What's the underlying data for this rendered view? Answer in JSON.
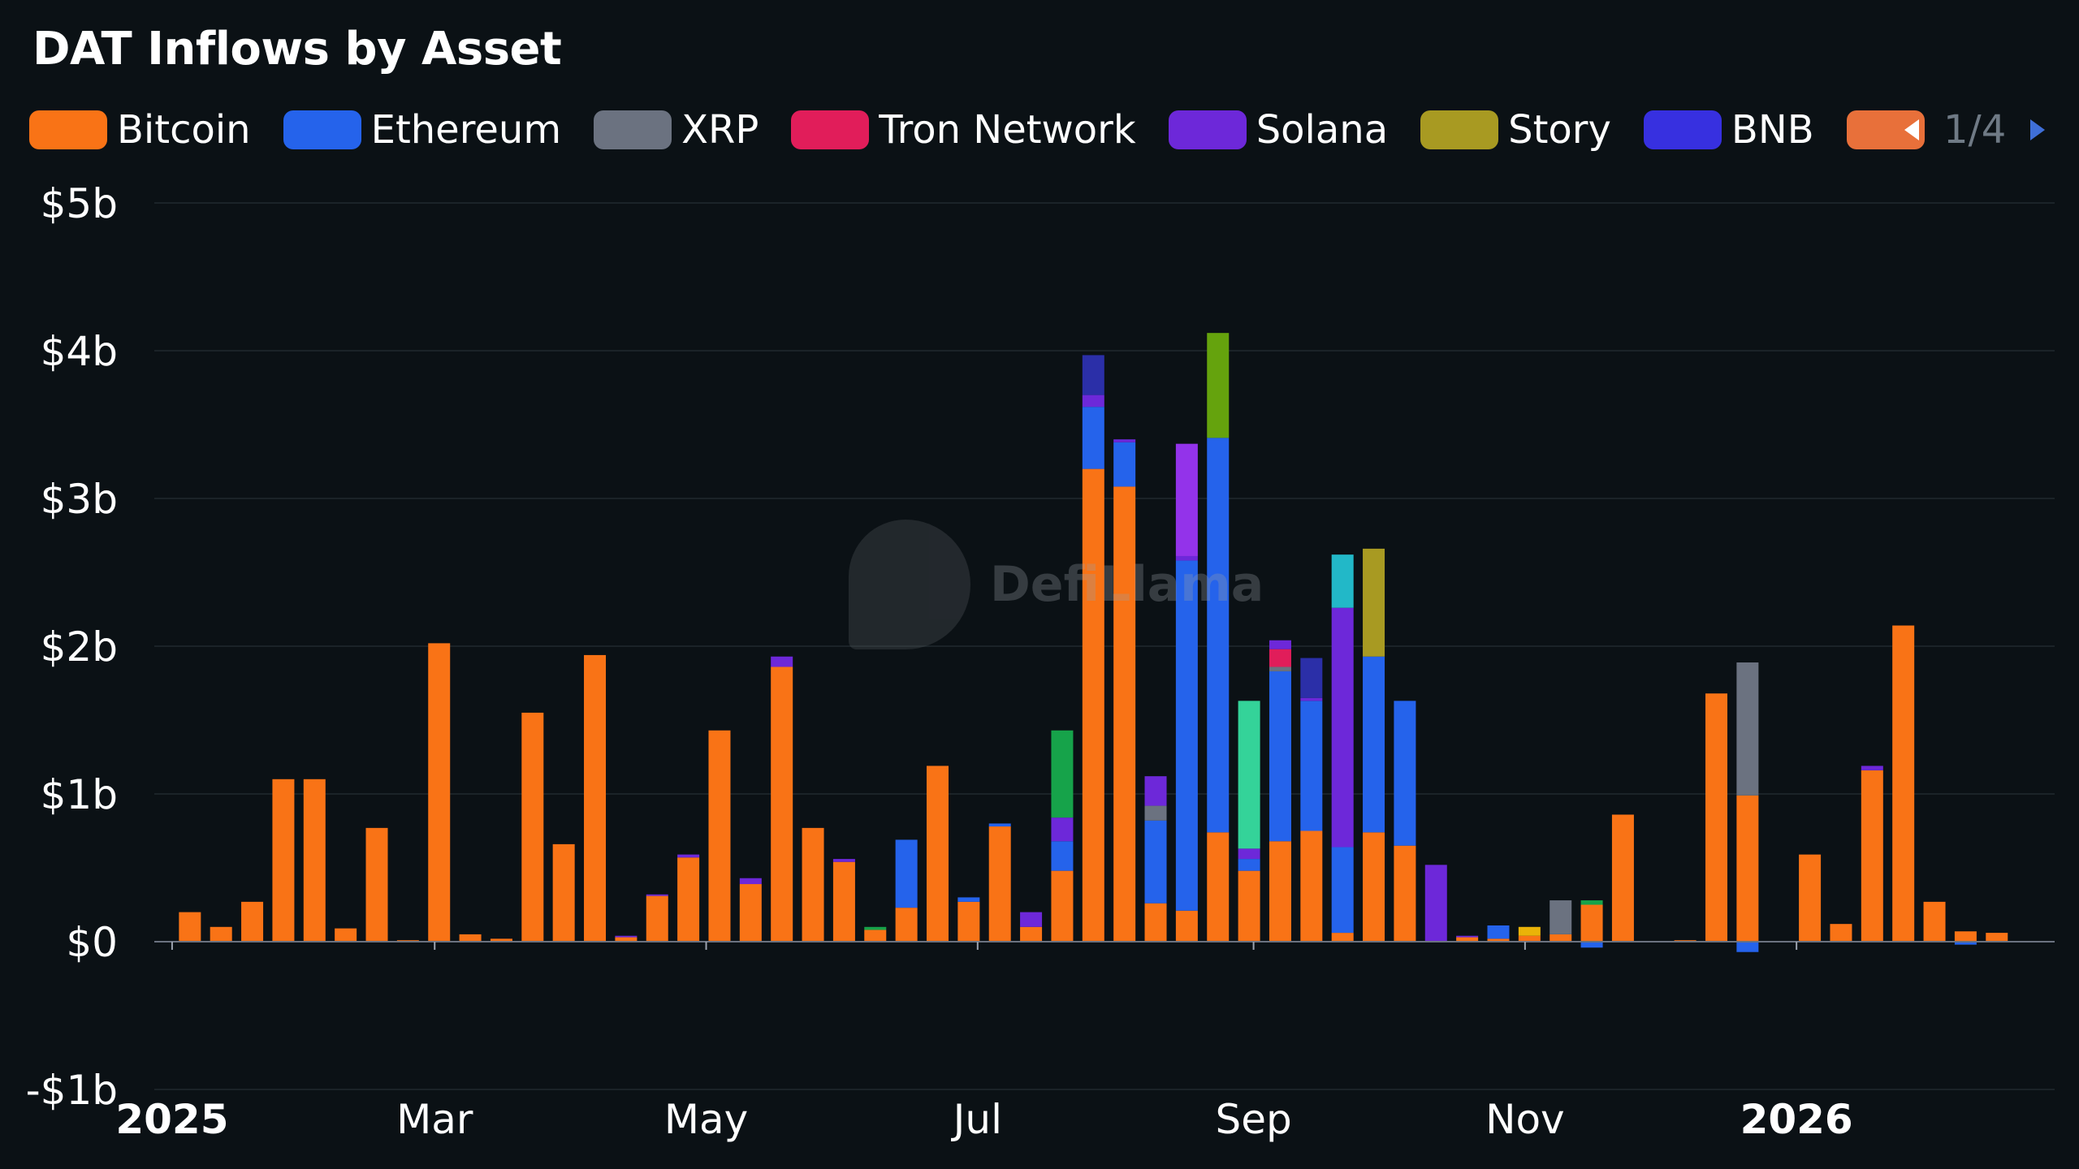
{
  "title": "DAT Inflows by Asset",
  "legend": {
    "items": [
      {
        "label": "Bitcoin",
        "color": "#f97316"
      },
      {
        "label": "Ethereum",
        "color": "#2563eb"
      },
      {
        "label": "XRP",
        "color": "#6b7280"
      },
      {
        "label": "Tron Network",
        "color": "#e11d5a"
      },
      {
        "label": "Solana",
        "color": "#6d28d9"
      },
      {
        "label": "Story",
        "color": "#a89a22"
      },
      {
        "label": "BNB",
        "color": "#3730e0"
      },
      {
        "label": "",
        "color": "#e8703a"
      }
    ],
    "page": "1/4"
  },
  "watermark": "DefiLlama",
  "chart_data": {
    "type": "bar",
    "stacked": true,
    "ylim": [
      -1,
      5
    ],
    "yticks": [
      {
        "value": 5,
        "label": "$5b"
      },
      {
        "value": 4,
        "label": "$4b"
      },
      {
        "value": 3,
        "label": "$3b"
      },
      {
        "value": 2,
        "label": "$2b"
      },
      {
        "value": 1,
        "label": "$1b"
      },
      {
        "value": 0,
        "label": "$0"
      },
      {
        "value": -1,
        "label": "-$1b"
      }
    ],
    "grid": true,
    "legend_position": "top",
    "xrange": [
      "2024-12-28",
      "2026-02-28"
    ],
    "xticks": [
      {
        "date": "2025-01-01",
        "label": "2025",
        "bold": true
      },
      {
        "date": "2025-03-01",
        "label": "Mar",
        "bold": false
      },
      {
        "date": "2025-05-01",
        "label": "May",
        "bold": false
      },
      {
        "date": "2025-07-01",
        "label": "Jul",
        "bold": false
      },
      {
        "date": "2025-09-01",
        "label": "Sep",
        "bold": false
      },
      {
        "date": "2025-11-01",
        "label": "Nov",
        "bold": false
      },
      {
        "date": "2026-01-01",
        "label": "2026",
        "bold": true
      }
    ],
    "segment_colors": {
      "btc": "#f97316",
      "eth": "#2563eb",
      "xrp": "#6b7280",
      "trx": "#e11d5a",
      "sol": "#6d28d9",
      "story": "#a89a22",
      "bnb": "#3730e0",
      "navy": "#2b2fa8",
      "green": "#16a34a",
      "olive": "#65a30d",
      "mint": "#34d399",
      "teal": "#22b8c8",
      "magenta": "#9333ea",
      "yellow": "#eab308"
    },
    "bars": [
      {
        "date": "2025-01-05",
        "segments": [
          {
            "key": "btc",
            "value": 0.2
          }
        ]
      },
      {
        "date": "2025-01-12",
        "segments": [
          {
            "key": "btc",
            "value": 0.1
          }
        ]
      },
      {
        "date": "2025-01-19",
        "segments": [
          {
            "key": "btc",
            "value": 0.27
          }
        ]
      },
      {
        "date": "2025-01-26",
        "segments": [
          {
            "key": "btc",
            "value": 1.1
          }
        ]
      },
      {
        "date": "2025-02-02",
        "segments": [
          {
            "key": "btc",
            "value": 1.1
          }
        ]
      },
      {
        "date": "2025-02-09",
        "segments": [
          {
            "key": "btc",
            "value": 0.09
          }
        ]
      },
      {
        "date": "2025-02-16",
        "segments": [
          {
            "key": "btc",
            "value": 0.77
          }
        ]
      },
      {
        "date": "2025-02-23",
        "segments": [
          {
            "key": "btc",
            "value": 0.01
          }
        ]
      },
      {
        "date": "2025-03-02",
        "segments": [
          {
            "key": "btc",
            "value": 2.02
          }
        ]
      },
      {
        "date": "2025-03-09",
        "segments": [
          {
            "key": "btc",
            "value": 0.05
          }
        ]
      },
      {
        "date": "2025-03-16",
        "segments": [
          {
            "key": "btc",
            "value": 0.02
          }
        ]
      },
      {
        "date": "2025-03-23",
        "segments": [
          {
            "key": "btc",
            "value": 1.55
          }
        ]
      },
      {
        "date": "2025-03-30",
        "segments": [
          {
            "key": "btc",
            "value": 0.66
          }
        ]
      },
      {
        "date": "2025-04-06",
        "segments": [
          {
            "key": "btc",
            "value": 1.94
          }
        ]
      },
      {
        "date": "2025-04-13",
        "segments": [
          {
            "key": "btc",
            "value": 0.03
          },
          {
            "key": "sol",
            "value": 0.01
          }
        ]
      },
      {
        "date": "2025-04-20",
        "segments": [
          {
            "key": "btc",
            "value": 0.31
          },
          {
            "key": "sol",
            "value": 0.01
          }
        ]
      },
      {
        "date": "2025-04-27",
        "segments": [
          {
            "key": "btc",
            "value": 0.57
          },
          {
            "key": "sol",
            "value": 0.02
          }
        ]
      },
      {
        "date": "2025-05-04",
        "segments": [
          {
            "key": "btc",
            "value": 1.43
          }
        ]
      },
      {
        "date": "2025-05-11",
        "segments": [
          {
            "key": "btc",
            "value": 0.39
          },
          {
            "key": "sol",
            "value": 0.04
          }
        ]
      },
      {
        "date": "2025-05-18",
        "segments": [
          {
            "key": "btc",
            "value": 1.86
          },
          {
            "key": "sol",
            "value": 0.07
          }
        ]
      },
      {
        "date": "2025-05-25",
        "segments": [
          {
            "key": "btc",
            "value": 0.77
          }
        ]
      },
      {
        "date": "2025-06-01",
        "segments": [
          {
            "key": "btc",
            "value": 0.54
          },
          {
            "key": "sol",
            "value": 0.02
          }
        ]
      },
      {
        "date": "2025-06-08",
        "segments": [
          {
            "key": "btc",
            "value": 0.08
          },
          {
            "key": "green",
            "value": 0.02
          }
        ]
      },
      {
        "date": "2025-06-15",
        "segments": [
          {
            "key": "btc",
            "value": 0.23
          },
          {
            "key": "eth",
            "value": 0.46
          }
        ]
      },
      {
        "date": "2025-06-22",
        "segments": [
          {
            "key": "btc",
            "value": 1.19
          }
        ]
      },
      {
        "date": "2025-06-29",
        "segments": [
          {
            "key": "btc",
            "value": 0.27
          },
          {
            "key": "eth",
            "value": 0.03
          }
        ]
      },
      {
        "date": "2025-07-06",
        "segments": [
          {
            "key": "btc",
            "value": 0.78
          },
          {
            "key": "eth",
            "value": 0.02
          }
        ]
      },
      {
        "date": "2025-07-13",
        "segments": [
          {
            "key": "btc",
            "value": 0.1
          },
          {
            "key": "sol",
            "value": 0.1
          }
        ]
      },
      {
        "date": "2025-07-20",
        "segments": [
          {
            "key": "btc",
            "value": 0.48
          },
          {
            "key": "eth",
            "value": 0.2
          },
          {
            "key": "sol",
            "value": 0.16
          },
          {
            "key": "green",
            "value": 0.59
          }
        ]
      },
      {
        "date": "2025-07-27",
        "segments": [
          {
            "key": "btc",
            "value": 3.2
          },
          {
            "key": "eth",
            "value": 0.42
          },
          {
            "key": "sol",
            "value": 0.08
          },
          {
            "key": "navy",
            "value": 0.27
          }
        ]
      },
      {
        "date": "2025-08-03",
        "segments": [
          {
            "key": "btc",
            "value": 3.08
          },
          {
            "key": "eth",
            "value": 0.3
          },
          {
            "key": "sol",
            "value": 0.02
          }
        ]
      },
      {
        "date": "2025-08-10",
        "segments": [
          {
            "key": "btc",
            "value": 0.26
          },
          {
            "key": "eth",
            "value": 0.56
          },
          {
            "key": "xrp",
            "value": 0.1
          },
          {
            "key": "sol",
            "value": 0.2
          }
        ]
      },
      {
        "date": "2025-08-17",
        "segments": [
          {
            "key": "btc",
            "value": 0.21
          },
          {
            "key": "eth",
            "value": 2.37
          },
          {
            "key": "sol",
            "value": 0.03
          },
          {
            "key": "magenta",
            "value": 0.76
          }
        ]
      },
      {
        "date": "2025-08-24",
        "segments": [
          {
            "key": "btc",
            "value": 0.74
          },
          {
            "key": "eth",
            "value": 2.67
          },
          {
            "key": "olive",
            "value": 0.71
          }
        ]
      },
      {
        "date": "2025-08-31",
        "segments": [
          {
            "key": "btc",
            "value": 0.48
          },
          {
            "key": "eth",
            "value": 0.08
          },
          {
            "key": "sol",
            "value": 0.07
          },
          {
            "key": "mint",
            "value": 1.0
          }
        ]
      },
      {
        "date": "2025-09-07",
        "segments": [
          {
            "key": "btc",
            "value": 0.68
          },
          {
            "key": "eth",
            "value": 1.15
          },
          {
            "key": "xrp",
            "value": 0.03
          },
          {
            "key": "trx",
            "value": 0.12
          },
          {
            "key": "sol",
            "value": 0.06
          }
        ]
      },
      {
        "date": "2025-09-14",
        "segments": [
          {
            "key": "btc",
            "value": 0.75
          },
          {
            "key": "eth",
            "value": 0.88
          },
          {
            "key": "sol",
            "value": 0.02
          },
          {
            "key": "navy",
            "value": 0.27
          }
        ]
      },
      {
        "date": "2025-09-21",
        "segments": [
          {
            "key": "btc",
            "value": 0.06
          },
          {
            "key": "eth",
            "value": 0.58
          },
          {
            "key": "sol",
            "value": 1.62
          },
          {
            "key": "teal",
            "value": 0.36
          }
        ]
      },
      {
        "date": "2025-09-28",
        "segments": [
          {
            "key": "btc",
            "value": 0.74
          },
          {
            "key": "eth",
            "value": 1.19
          },
          {
            "key": "story",
            "value": 0.73
          }
        ]
      },
      {
        "date": "2025-10-05",
        "segments": [
          {
            "key": "btc",
            "value": 0.65
          },
          {
            "key": "eth",
            "value": 0.98
          }
        ]
      },
      {
        "date": "2025-10-12",
        "segments": [
          {
            "key": "sol",
            "value": 0.52
          }
        ]
      },
      {
        "date": "2025-10-19",
        "segments": [
          {
            "key": "btc",
            "value": 0.03
          },
          {
            "key": "sol",
            "value": 0.01
          }
        ]
      },
      {
        "date": "2025-10-26",
        "segments": [
          {
            "key": "btc",
            "value": 0.02
          },
          {
            "key": "eth",
            "value": 0.09
          }
        ]
      },
      {
        "date": "2025-11-02",
        "segments": [
          {
            "key": "btc",
            "value": 0.04
          },
          {
            "key": "yellow",
            "value": 0.06
          }
        ]
      },
      {
        "date": "2025-11-09",
        "segments": [
          {
            "key": "btc",
            "value": 0.05
          },
          {
            "key": "xrp",
            "value": 0.23
          }
        ]
      },
      {
        "date": "2025-11-16",
        "segments": [
          {
            "key": "btc",
            "value": 0.25
          },
          {
            "key": "green",
            "value": 0.03
          },
          {
            "key": "eth",
            "value": -0.04
          }
        ]
      },
      {
        "date": "2025-11-23",
        "segments": [
          {
            "key": "btc",
            "value": 0.86
          }
        ]
      },
      {
        "date": "2025-12-07",
        "segments": [
          {
            "key": "btc",
            "value": 0.01
          }
        ]
      },
      {
        "date": "2025-12-14",
        "segments": [
          {
            "key": "btc",
            "value": 1.68
          }
        ]
      },
      {
        "date": "2025-12-21",
        "segments": [
          {
            "key": "btc",
            "value": 0.99
          },
          {
            "key": "xrp",
            "value": 0.9
          },
          {
            "key": "eth",
            "value": -0.07
          }
        ]
      },
      {
        "date": "2026-01-04",
        "segments": [
          {
            "key": "btc",
            "value": 0.59
          }
        ]
      },
      {
        "date": "2026-01-11",
        "segments": [
          {
            "key": "btc",
            "value": 0.12
          }
        ]
      },
      {
        "date": "2026-01-18",
        "segments": [
          {
            "key": "btc",
            "value": 1.16
          },
          {
            "key": "sol",
            "value": 0.03
          }
        ]
      },
      {
        "date": "2026-01-25",
        "segments": [
          {
            "key": "btc",
            "value": 2.14
          }
        ]
      },
      {
        "date": "2026-02-01",
        "segments": [
          {
            "key": "btc",
            "value": 0.27
          }
        ]
      },
      {
        "date": "2026-02-08",
        "segments": [
          {
            "key": "btc",
            "value": 0.07
          },
          {
            "key": "eth",
            "value": -0.02
          }
        ]
      },
      {
        "date": "2026-02-15",
        "segments": [
          {
            "key": "btc",
            "value": 0.06
          }
        ]
      }
    ]
  }
}
